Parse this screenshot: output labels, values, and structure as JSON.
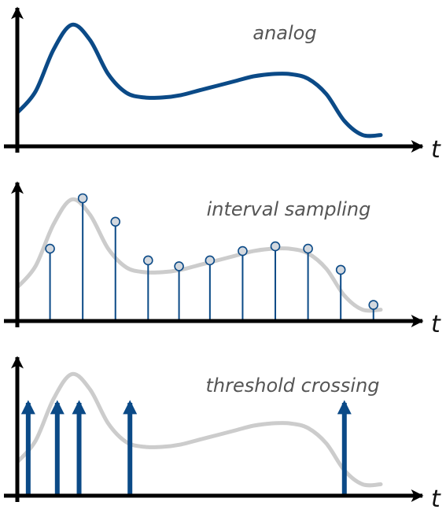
{
  "colors": {
    "signal": "#0b4a87",
    "ghost": "#cccccc",
    "marker_fill": "#d3d8de",
    "axis": "#000000",
    "background": "#ffffff"
  },
  "signal_curve": {
    "t": [
      0,
      0.05,
      0.1,
      0.15,
      0.2,
      0.25,
      0.3,
      0.35,
      0.4,
      0.45,
      0.5,
      0.55,
      0.6,
      0.65,
      0.7,
      0.75,
      0.8,
      0.85,
      0.9,
      0.95,
      1.0
    ],
    "amplitude": [
      0.24,
      0.42,
      0.78,
      0.99,
      0.86,
      0.57,
      0.41,
      0.37,
      0.37,
      0.39,
      0.43,
      0.47,
      0.51,
      0.55,
      0.57,
      0.57,
      0.53,
      0.4,
      0.17,
      0.05,
      0.05
    ]
  },
  "panels": [
    {
      "id": "analog",
      "label": "analog",
      "axis_label": "t",
      "mode": "analog"
    },
    {
      "id": "interval",
      "label": "interval sampling",
      "axis_label": "t",
      "mode": "sampled",
      "samples": [
        {
          "t": 0.09,
          "v": 0.57
        },
        {
          "t": 0.18,
          "v": 1.0
        },
        {
          "t": 0.27,
          "v": 0.8
        },
        {
          "t": 0.36,
          "v": 0.47
        },
        {
          "t": 0.445,
          "v": 0.42
        },
        {
          "t": 0.53,
          "v": 0.47
        },
        {
          "t": 0.62,
          "v": 0.55
        },
        {
          "t": 0.71,
          "v": 0.59
        },
        {
          "t": 0.8,
          "v": 0.57
        },
        {
          "t": 0.89,
          "v": 0.39
        },
        {
          "t": 0.98,
          "v": 0.09
        }
      ]
    },
    {
      "id": "threshold",
      "label": "threshold crossing",
      "axis_label": "t",
      "mode": "events",
      "events": [
        0.03,
        0.11,
        0.17,
        0.31,
        0.9
      ]
    }
  ]
}
